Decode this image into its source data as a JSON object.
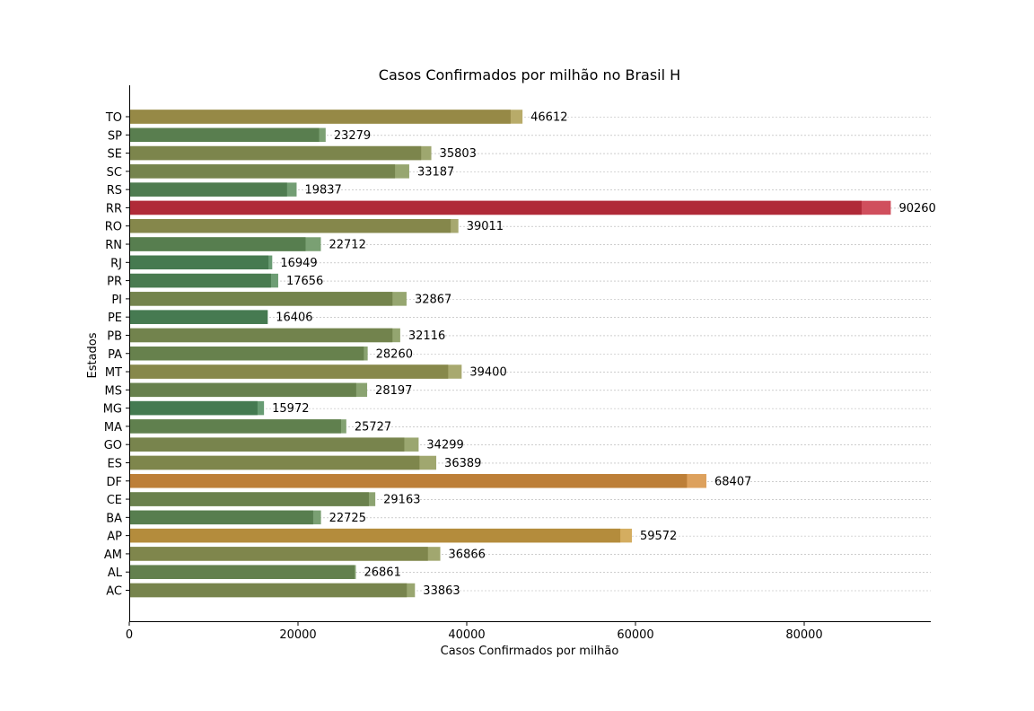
{
  "chart_data": {
    "type": "bar",
    "orientation": "horizontal",
    "title": "Casos Confirmados por milhão no Brasil H",
    "xlabel": "Casos Confirmados por milhão",
    "ylabel": "Estados",
    "xlim": [
      0,
      95000
    ],
    "x_ticks": [
      0,
      20000,
      40000,
      60000,
      80000
    ],
    "grid": "horizontal dotted",
    "categories": [
      "AC",
      "AL",
      "AM",
      "AP",
      "BA",
      "CE",
      "DF",
      "ES",
      "GO",
      "MA",
      "MG",
      "MS",
      "MT",
      "PA",
      "PB",
      "PE",
      "PI",
      "PR",
      "RJ",
      "RN",
      "RO",
      "RR",
      "RS",
      "SC",
      "SE",
      "SP",
      "TO"
    ],
    "values": [
      33863,
      26861,
      36866,
      59572,
      22725,
      29163,
      68407,
      36389,
      34299,
      25727,
      15972,
      28197,
      39400,
      28260,
      32116,
      16406,
      32867,
      17656,
      16949,
      22712,
      39011,
      90260,
      19837,
      33187,
      35803,
      23279,
      46612
    ],
    "front_values": [
      32900,
      26700,
      35400,
      58200,
      21800,
      28400,
      66100,
      34400,
      32600,
      25100,
      15200,
      26900,
      37800,
      27800,
      31200,
      16406,
      31200,
      16800,
      16500,
      20900,
      38100,
      86800,
      18700,
      31500,
      34600,
      22500,
      45200
    ],
    "colors": {
      "low": "#4a8a5c",
      "mid": "#9a9a55",
      "high": "#d9a040",
      "max": "#c83040"
    }
  }
}
